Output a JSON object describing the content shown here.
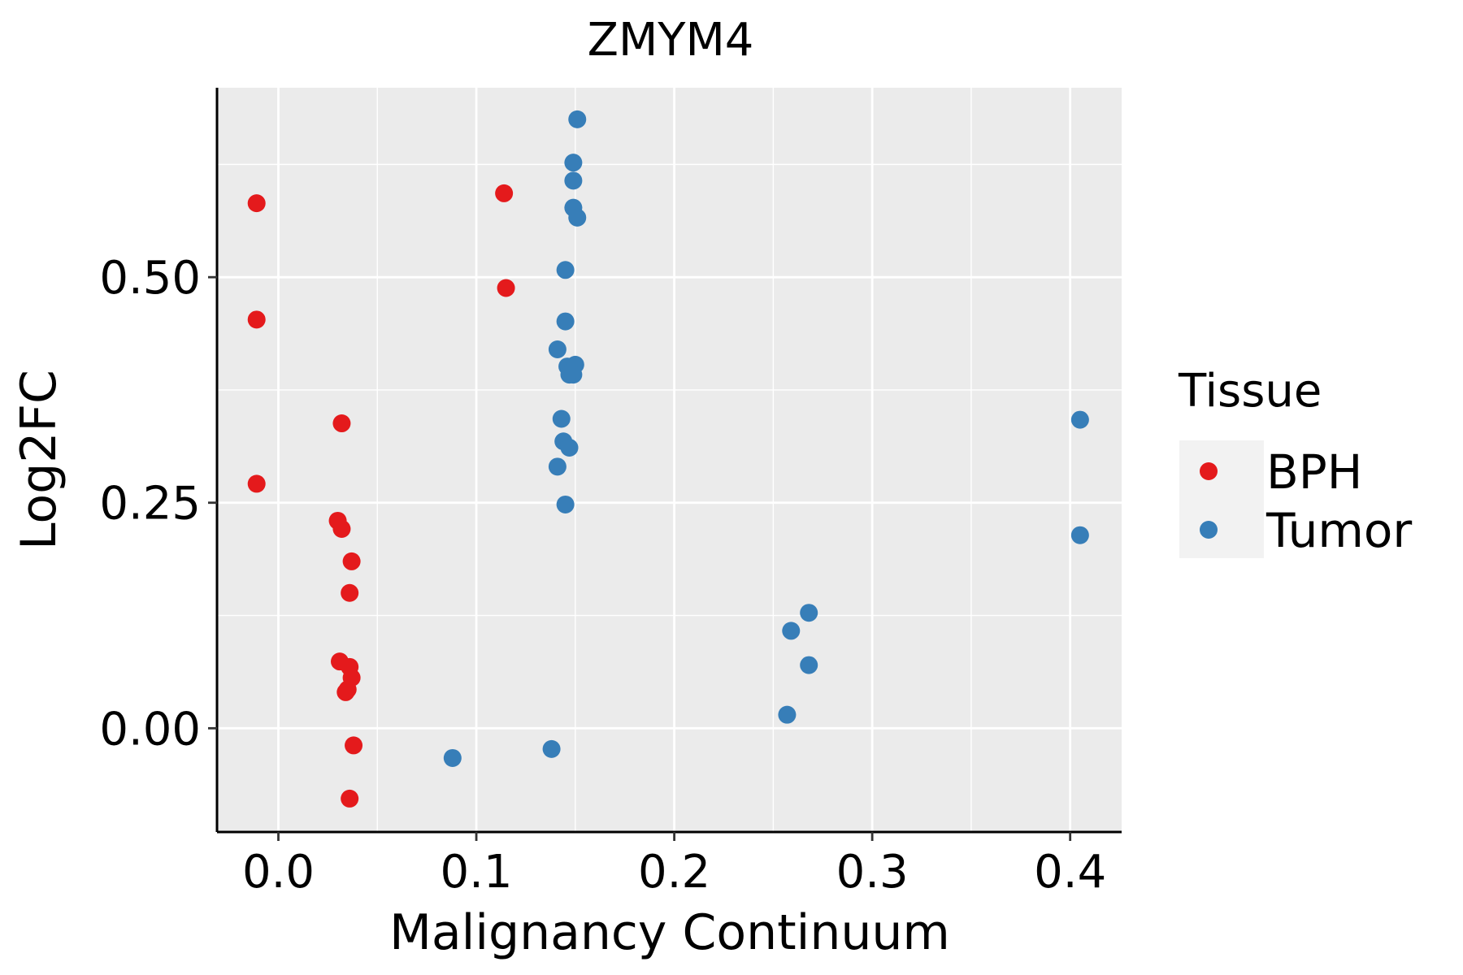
{
  "chart_data": {
    "type": "scatter",
    "title": "ZMYM4",
    "xlabel": "Malignancy Continuum",
    "ylabel": "Log2FC",
    "xlim": [
      -0.031,
      0.426
    ],
    "ylim": [
      -0.115,
      0.71
    ],
    "x_ticks": [
      0.0,
      0.1,
      0.2,
      0.3,
      0.4
    ],
    "x_tick_labels": [
      "0.0",
      "0.1",
      "0.2",
      "0.3",
      "0.4"
    ],
    "y_ticks": [
      0.0,
      0.25,
      0.5
    ],
    "y_tick_labels": [
      "0.00",
      "0.25",
      "0.50"
    ],
    "grid": true,
    "legend": {
      "title": "Tissue",
      "position": "right",
      "entries": [
        {
          "name": "BPH",
          "color": "#E41A1C"
        },
        {
          "name": "Tumor",
          "color": "#377EB8"
        }
      ]
    },
    "series": [
      {
        "name": "BPH",
        "color": "#E41A1C",
        "points": [
          {
            "x": -0.011,
            "y": 0.582
          },
          {
            "x": -0.011,
            "y": 0.453
          },
          {
            "x": -0.011,
            "y": 0.271
          },
          {
            "x": 0.032,
            "y": 0.338
          },
          {
            "x": 0.03,
            "y": 0.23
          },
          {
            "x": 0.032,
            "y": 0.221
          },
          {
            "x": 0.037,
            "y": 0.185
          },
          {
            "x": 0.036,
            "y": 0.15
          },
          {
            "x": 0.031,
            "y": 0.074
          },
          {
            "x": 0.036,
            "y": 0.068
          },
          {
            "x": 0.037,
            "y": 0.056
          },
          {
            "x": 0.035,
            "y": 0.043
          },
          {
            "x": 0.034,
            "y": 0.04
          },
          {
            "x": 0.038,
            "y": -0.019
          },
          {
            "x": 0.036,
            "y": -0.078
          },
          {
            "x": 0.114,
            "y": 0.593
          },
          {
            "x": 0.115,
            "y": 0.488
          }
        ]
      },
      {
        "name": "Tumor",
        "color": "#377EB8",
        "points": [
          {
            "x": 0.151,
            "y": 0.675
          },
          {
            "x": 0.149,
            "y": 0.627
          },
          {
            "x": 0.149,
            "y": 0.607
          },
          {
            "x": 0.149,
            "y": 0.577
          },
          {
            "x": 0.151,
            "y": 0.566
          },
          {
            "x": 0.145,
            "y": 0.508
          },
          {
            "x": 0.145,
            "y": 0.451
          },
          {
            "x": 0.141,
            "y": 0.42
          },
          {
            "x": 0.146,
            "y": 0.401
          },
          {
            "x": 0.15,
            "y": 0.403
          },
          {
            "x": 0.147,
            "y": 0.392
          },
          {
            "x": 0.149,
            "y": 0.392
          },
          {
            "x": 0.143,
            "y": 0.343
          },
          {
            "x": 0.144,
            "y": 0.318
          },
          {
            "x": 0.147,
            "y": 0.311
          },
          {
            "x": 0.141,
            "y": 0.29
          },
          {
            "x": 0.145,
            "y": 0.248
          },
          {
            "x": 0.138,
            "y": -0.023
          },
          {
            "x": 0.088,
            "y": -0.033
          },
          {
            "x": 0.268,
            "y": 0.128
          },
          {
            "x": 0.259,
            "y": 0.108
          },
          {
            "x": 0.268,
            "y": 0.07
          },
          {
            "x": 0.257,
            "y": 0.015
          },
          {
            "x": 0.405,
            "y": 0.342
          },
          {
            "x": 0.405,
            "y": 0.214
          }
        ]
      }
    ]
  }
}
